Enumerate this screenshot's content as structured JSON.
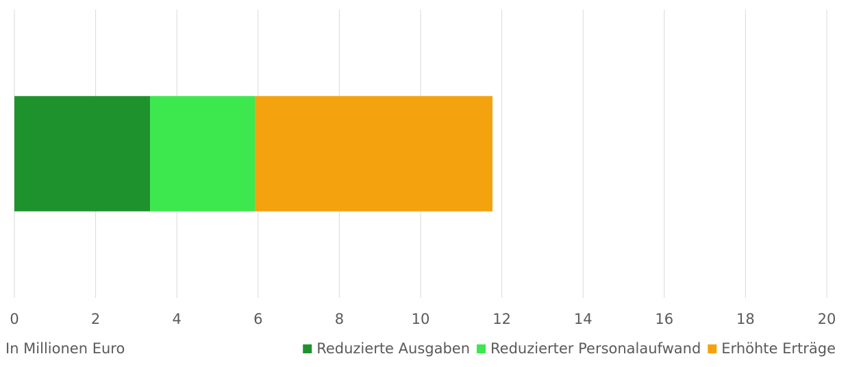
{
  "chart_data": {
    "type": "bar",
    "orientation": "horizontal",
    "stacked": true,
    "categories": [
      null
    ],
    "series": [
      {
        "name": "Reduzierte Ausgaben",
        "color": "#1e932d",
        "values": [
          3.34
        ]
      },
      {
        "name": "Reduzierter Personalaufwand",
        "color": "#3ce84e",
        "values": [
          2.58
        ]
      },
      {
        "name": "Erhöhte Erträge",
        "color": "#f4a20e",
        "values": [
          5.85
        ]
      }
    ],
    "xlabel": "In Millionen Euro",
    "xlim": [
      0,
      20
    ],
    "xticks": [
      0,
      2,
      4,
      6,
      8,
      10,
      12,
      14,
      16,
      18,
      20
    ],
    "grid": true,
    "legend": "bottom-right"
  }
}
